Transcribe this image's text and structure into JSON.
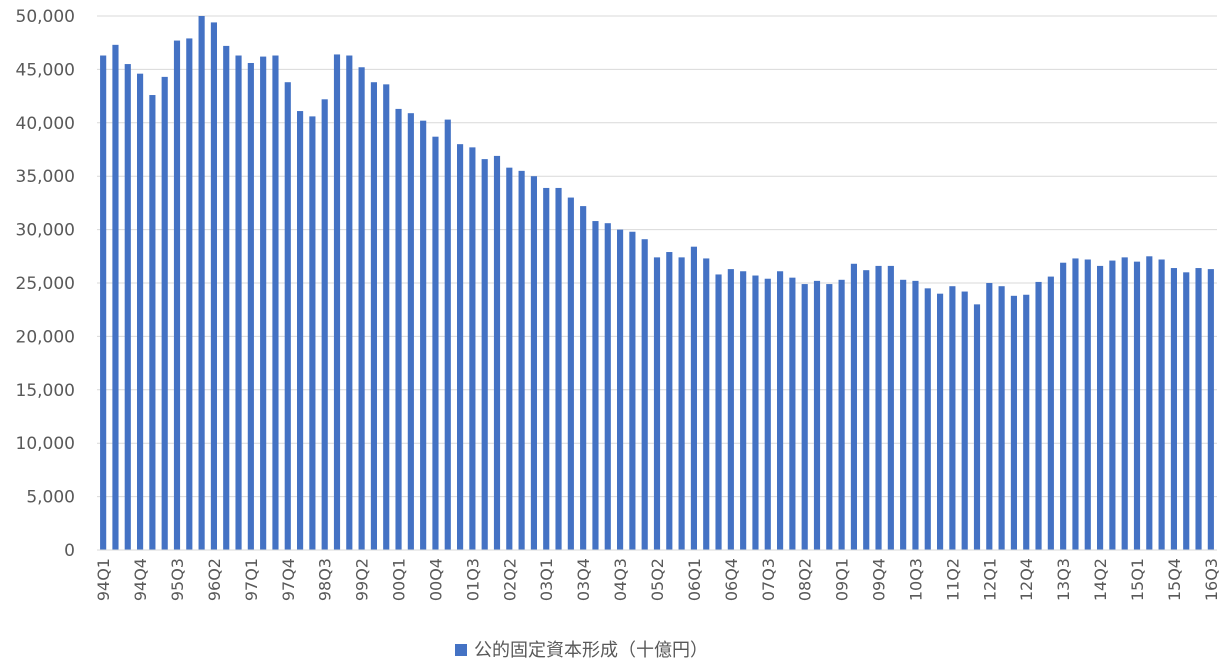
{
  "chart_data": {
    "type": "bar",
    "title": "",
    "xlabel": "",
    "ylabel": "",
    "ylim": [
      0,
      50000
    ],
    "yticks": [
      "0",
      "5,000",
      "10,000",
      "15,000",
      "20,000",
      "25,000",
      "30,000",
      "35,000",
      "40,000",
      "45,000",
      "50,000"
    ],
    "grid": true,
    "legend_position": "bottom",
    "colors": {
      "bar": "#4472C4",
      "grid": "#D9D9D9",
      "text": "#595959"
    },
    "categories": [
      "94Q1",
      "94Q2",
      "94Q3",
      "94Q4",
      "95Q1",
      "95Q2",
      "95Q3",
      "95Q4",
      "96Q1",
      "96Q2",
      "96Q3",
      "96Q4",
      "97Q1",
      "97Q2",
      "97Q3",
      "97Q4",
      "98Q1",
      "98Q2",
      "98Q3",
      "98Q4",
      "99Q1",
      "99Q2",
      "99Q3",
      "99Q4",
      "00Q1",
      "00Q2",
      "00Q3",
      "00Q4",
      "01Q1",
      "01Q2",
      "01Q3",
      "01Q4",
      "02Q1",
      "02Q2",
      "02Q3",
      "02Q4",
      "03Q1",
      "03Q2",
      "03Q3",
      "03Q4",
      "04Q1",
      "04Q2",
      "04Q3",
      "04Q4",
      "05Q1",
      "05Q2",
      "05Q3",
      "05Q4",
      "06Q1",
      "06Q2",
      "06Q3",
      "06Q4",
      "07Q1",
      "07Q2",
      "07Q3",
      "07Q4",
      "08Q1",
      "08Q2",
      "08Q3",
      "08Q4",
      "09Q1",
      "09Q2",
      "09Q3",
      "09Q4",
      "10Q1",
      "10Q2",
      "10Q3",
      "10Q4",
      "11Q1",
      "11Q2",
      "11Q3",
      "11Q4",
      "12Q1",
      "12Q2",
      "12Q3",
      "12Q4",
      "13Q1",
      "13Q2",
      "13Q3",
      "13Q4",
      "14Q1",
      "14Q2",
      "14Q3",
      "14Q4",
      "15Q1",
      "15Q2",
      "15Q3",
      "15Q4",
      "16Q1",
      "16Q2",
      "16Q3"
    ],
    "labeled_categories": [
      "94Q1",
      "94Q4",
      "95Q3",
      "96Q2",
      "97Q1",
      "97Q4",
      "98Q3",
      "99Q2",
      "00Q1",
      "00Q4",
      "01Q3",
      "02Q2",
      "03Q1",
      "03Q4",
      "04Q3",
      "05Q2",
      "06Q1",
      "06Q4",
      "07Q3",
      "08Q2",
      "09Q1",
      "09Q4",
      "10Q3",
      "11Q2",
      "12Q1",
      "12Q4",
      "13Q3",
      "14Q2",
      "15Q1",
      "15Q4",
      "16Q3"
    ],
    "series": [
      {
        "name": "公的固定資本形成（十億円）",
        "values": [
          46300,
          47300,
          45500,
          44600,
          42600,
          44300,
          47700,
          47900,
          50000,
          49400,
          47200,
          46300,
          45600,
          46200,
          46300,
          43800,
          41100,
          40600,
          42200,
          46400,
          46300,
          45200,
          43800,
          43600,
          41300,
          40900,
          40200,
          38700,
          40300,
          38000,
          37700,
          36600,
          36900,
          35800,
          35500,
          35000,
          33900,
          33900,
          33000,
          32200,
          30800,
          30600,
          30000,
          29800,
          29100,
          27400,
          27900,
          27400,
          28400,
          27300,
          25800,
          26300,
          26100,
          25700,
          25400,
          26100,
          25500,
          24900,
          25200,
          24900,
          25300,
          26800,
          26200,
          26600,
          26600,
          25300,
          25200,
          24500,
          24000,
          24700,
          24200,
          23000,
          25000,
          24700,
          23800,
          23900,
          25100,
          25600,
          26900,
          27300,
          27200,
          26600,
          27100,
          27400,
          27000,
          27500,
          27200,
          26400,
          26000,
          26400,
          26300
        ]
      }
    ]
  }
}
